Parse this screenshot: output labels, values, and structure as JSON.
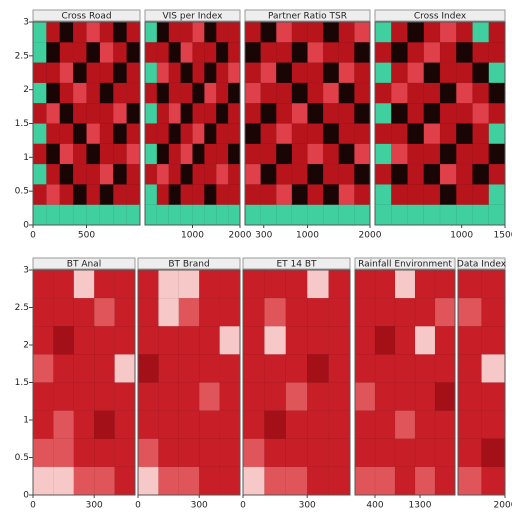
{
  "chart_data": [
    {
      "type": "heatmap",
      "ylim": [
        0,
        3
      ],
      "yticks": [
        0,
        0.5,
        1,
        1.5,
        2,
        2.5,
        3
      ],
      "colors": [
        "#1a0505",
        "#b8141c",
        "#e0404a",
        "#40d0a0"
      ],
      "clim": [
        0,
        3
      ],
      "panels": [
        {
          "title": "Cross Road",
          "xlim": [
            0,
            1000
          ],
          "xticks": [
            0,
            500
          ],
          "values": [
            [
              3,
              1,
              0,
              1,
              2,
              1,
              0,
              1
            ],
            [
              3,
              0,
              1,
              1,
              0,
              2,
              1,
              0
            ],
            [
              1,
              1,
              2,
              0,
              1,
              1,
              0,
              1
            ],
            [
              3,
              0,
              1,
              2,
              1,
              0,
              1,
              1
            ],
            [
              1,
              2,
              0,
              1,
              1,
              1,
              2,
              0
            ],
            [
              3,
              1,
              1,
              0,
              2,
              1,
              0,
              1
            ],
            [
              1,
              0,
              2,
              1,
              0,
              1,
              1,
              2
            ],
            [
              3,
              1,
              0,
              1,
              1,
              2,
              0,
              1
            ],
            [
              1,
              2,
              1,
              0,
              1,
              0,
              1,
              1
            ],
            [
              3,
              3,
              3,
              3,
              3,
              3,
              3,
              3
            ]
          ]
        },
        {
          "title": "VIS per Index",
          "xlim": [
            0,
            2000
          ],
          "xticks": [
            1000,
            2000
          ],
          "values": [
            [
              3,
              0,
              1,
              1,
              2,
              0,
              1,
              1
            ],
            [
              1,
              1,
              0,
              2,
              1,
              1,
              0,
              1
            ],
            [
              3,
              2,
              1,
              0,
              1,
              0,
              1,
              2
            ],
            [
              1,
              0,
              1,
              1,
              0,
              2,
              1,
              0
            ],
            [
              3,
              1,
              2,
              0,
              1,
              1,
              0,
              1
            ],
            [
              1,
              1,
              0,
              1,
              2,
              0,
              1,
              1
            ],
            [
              3,
              0,
              1,
              2,
              0,
              1,
              1,
              0
            ],
            [
              1,
              2,
              1,
              0,
              1,
              1,
              2,
              1
            ],
            [
              3,
              1,
              0,
              1,
              1,
              0,
              1,
              1
            ],
            [
              3,
              3,
              3,
              3,
              3,
              3,
              3,
              3
            ]
          ]
        },
        {
          "title": "Partner Ratio TSR",
          "xlim": [
            0,
            2000
          ],
          "xticks": [
            300,
            1000,
            2000
          ],
          "values": [
            [
              1,
              0,
              2,
              1,
              1,
              0,
              1,
              2
            ],
            [
              0,
              1,
              1,
              0,
              2,
              1,
              1,
              0
            ],
            [
              1,
              2,
              0,
              1,
              1,
              0,
              2,
              1
            ],
            [
              2,
              1,
              1,
              0,
              1,
              2,
              0,
              1
            ],
            [
              1,
              0,
              1,
              2,
              0,
              1,
              1,
              0
            ],
            [
              0,
              1,
              2,
              1,
              1,
              0,
              1,
              1
            ],
            [
              1,
              1,
              0,
              1,
              2,
              1,
              0,
              2
            ],
            [
              2,
              0,
              1,
              1,
              0,
              1,
              1,
              0
            ],
            [
              1,
              1,
              2,
              0,
              1,
              0,
              2,
              1
            ],
            [
              3,
              3,
              3,
              3,
              3,
              3,
              3,
              3
            ]
          ]
        },
        {
          "title": "Cross Index",
          "xlim": [
            0,
            1500
          ],
          "xticks": [
            1000,
            1500
          ],
          "values": [
            [
              3,
              1,
              0,
              1,
              2,
              1,
              3,
              1
            ],
            [
              1,
              0,
              1,
              2,
              1,
              0,
              1,
              1
            ],
            [
              3,
              1,
              2,
              0,
              1,
              1,
              0,
              3
            ],
            [
              1,
              2,
              1,
              1,
              0,
              2,
              1,
              0
            ],
            [
              3,
              0,
              1,
              0,
              1,
              1,
              2,
              1
            ],
            [
              1,
              1,
              0,
              2,
              1,
              0,
              1,
              3
            ],
            [
              3,
              2,
              1,
              1,
              0,
              1,
              1,
              0
            ],
            [
              1,
              0,
              1,
              0,
              2,
              1,
              0,
              1
            ],
            [
              3,
              1,
              1,
              1,
              0,
              1,
              1,
              3
            ],
            [
              3,
              3,
              3,
              3,
              3,
              3,
              3,
              3
            ]
          ]
        }
      ]
    },
    {
      "type": "heatmap",
      "ylim": [
        0,
        3
      ],
      "yticks": [
        0,
        0.5,
        1,
        1.5,
        2,
        2.5,
        3
      ],
      "colors": [
        "#f6c8c8",
        "#e0555a",
        "#c81e28",
        "#a31018"
      ],
      "clim": [
        0,
        3
      ],
      "panels": [
        {
          "title": "BT Anal",
          "xlim": [
            0,
            500
          ],
          "xticks": [
            0,
            300
          ],
          "values": [
            [
              2,
              2,
              0,
              2,
              2
            ],
            [
              2,
              2,
              2,
              1,
              2
            ],
            [
              2,
              3,
              2,
              2,
              2
            ],
            [
              1,
              2,
              2,
              2,
              0
            ],
            [
              2,
              2,
              2,
              2,
              2
            ],
            [
              2,
              1,
              2,
              3,
              2
            ],
            [
              1,
              1,
              2,
              2,
              2
            ],
            [
              0,
              0,
              1,
              1,
              2
            ]
          ]
        },
        {
          "title": "BT Brand",
          "xlim": [
            0,
            500
          ],
          "xticks": [
            0,
            300
          ],
          "values": [
            [
              2,
              0,
              0,
              2,
              2
            ],
            [
              2,
              0,
              1,
              2,
              2
            ],
            [
              2,
              2,
              2,
              2,
              0
            ],
            [
              3,
              2,
              2,
              2,
              2
            ],
            [
              2,
              2,
              2,
              1,
              2
            ],
            [
              2,
              2,
              2,
              2,
              2
            ],
            [
              1,
              2,
              2,
              2,
              2
            ],
            [
              0,
              1,
              1,
              2,
              2
            ]
          ]
        },
        {
          "title": "ET 14 BT",
          "xlim": [
            0,
            500
          ],
          "xticks": [
            0,
            300
          ],
          "values": [
            [
              2,
              2,
              2,
              0,
              2
            ],
            [
              2,
              1,
              2,
              2,
              2
            ],
            [
              2,
              0,
              2,
              2,
              2
            ],
            [
              2,
              2,
              2,
              3,
              2
            ],
            [
              2,
              2,
              1,
              2,
              2
            ],
            [
              2,
              3,
              2,
              2,
              2
            ],
            [
              1,
              2,
              2,
              2,
              2
            ],
            [
              0,
              1,
              1,
              2,
              2
            ]
          ]
        },
        {
          "title": "Rainfall Environment",
          "xlim": [
            0,
            2000
          ],
          "xticks": [
            400,
            1300
          ],
          "values": [
            [
              2,
              2,
              0,
              2,
              2
            ],
            [
              2,
              2,
              2,
              2,
              1
            ],
            [
              2,
              3,
              2,
              0,
              2
            ],
            [
              2,
              2,
              2,
              2,
              2
            ],
            [
              1,
              2,
              2,
              2,
              3
            ],
            [
              2,
              2,
              1,
              2,
              2
            ],
            [
              2,
              2,
              2,
              2,
              2
            ],
            [
              1,
              1,
              2,
              1,
              2
            ]
          ]
        },
        {
          "title": "Data Index",
          "xlim": [
            0,
            2000
          ],
          "xticks": [
            2000
          ],
          "values": [
            [
              2,
              2
            ],
            [
              1,
              2
            ],
            [
              2,
              2
            ],
            [
              2,
              0
            ],
            [
              2,
              2
            ],
            [
              2,
              2
            ],
            [
              2,
              3
            ],
            [
              1,
              2
            ]
          ]
        }
      ]
    }
  ]
}
